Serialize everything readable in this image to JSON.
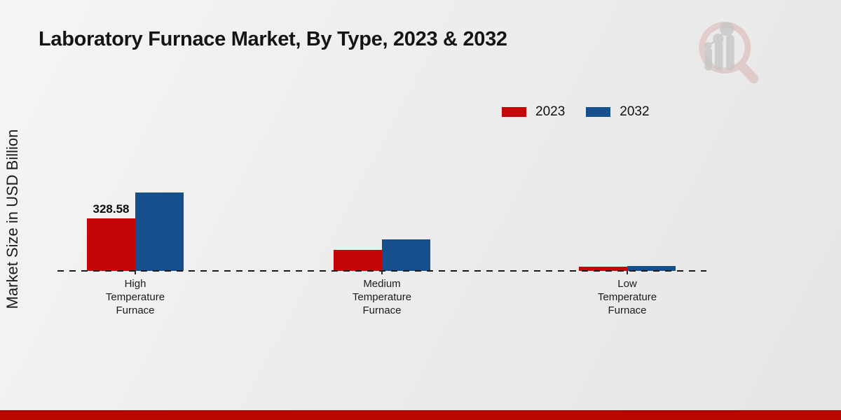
{
  "title": "Laboratory Furnace Market, By Type, 2023 & 2032",
  "y_axis_label": "Market Size in USD Billion",
  "footer_bar_color": "#b90600",
  "watermark_icon": "magnifier-bar-chart-logo",
  "chart_data": {
    "type": "bar",
    "title": "Laboratory Furnace Market, By Type, 2023 & 2032",
    "ylabel": "Market Size in USD Billion",
    "xlabel": "",
    "categories": [
      "High Temperature Furnace",
      "Medium Temperature Furnace",
      "Low Temperature Furnace"
    ],
    "category_lines": [
      [
        "High",
        "Temperature",
        "Furnace"
      ],
      [
        "Medium",
        "Temperature",
        "Furnace"
      ],
      [
        "Low",
        "Temperature",
        "Furnace"
      ]
    ],
    "series": [
      {
        "name": "2023",
        "color": "#c40606",
        "values": [
          328.58,
          131,
          26
        ]
      },
      {
        "name": "2032",
        "color": "#15508d",
        "values": [
          490,
          197,
          31
        ]
      }
    ],
    "point_labels": [
      [
        "328.58",
        "",
        ""
      ],
      [
        "",
        "",
        ""
      ]
    ],
    "ylim": [
      0,
      520
    ],
    "grid": false,
    "legend_position": "top-right",
    "baseline_style": "dashed"
  }
}
